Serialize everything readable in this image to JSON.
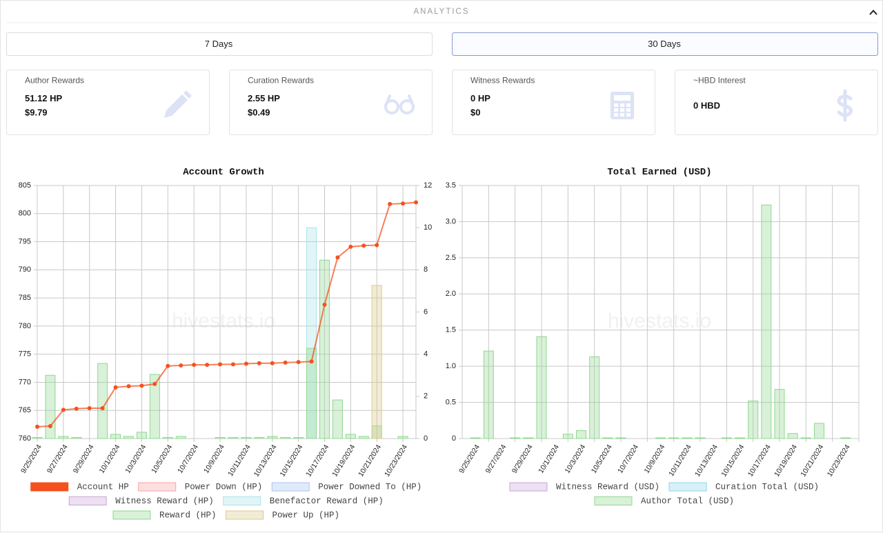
{
  "header": {
    "title": "ANALYTICS"
  },
  "range_buttons": [
    {
      "label": "7 Days",
      "selected": false
    },
    {
      "label": "30 Days",
      "selected": true
    }
  ],
  "cards": [
    {
      "title": "Author Rewards",
      "lines": [
        "51.12 HP",
        "$9.79"
      ],
      "icon": "pencil"
    },
    {
      "title": "Curation Rewards",
      "lines": [
        "2.55 HP",
        "$0.49"
      ],
      "icon": "glasses"
    },
    {
      "title": "Witness Rewards",
      "lines": [
        "0 HP",
        "$0"
      ],
      "icon": "calculator"
    },
    {
      "title": "~HBD Interest",
      "lines": [
        "0 HBD"
      ],
      "icon": "dollar"
    }
  ],
  "chart_data": [
    {
      "type": "bar",
      "title": "Account Growth",
      "watermark": "hivestats.io",
      "categories": [
        "9/25/2024",
        null,
        "9/27/2024",
        null,
        "9/29/2024",
        null,
        "10/1/2024",
        null,
        "10/3/2024",
        null,
        "10/5/2024",
        null,
        "10/7/2024",
        null,
        "10/9/2024",
        null,
        "10/11/2024",
        null,
        "10/13/2024",
        null,
        "10/15/2024",
        null,
        "10/17/2024",
        null,
        "10/19/2024",
        null,
        "10/21/2024",
        null,
        "10/23/2024",
        null
      ],
      "ylim": [
        760,
        805
      ],
      "yticks": [
        760,
        765,
        770,
        775,
        780,
        785,
        790,
        795,
        800,
        805
      ],
      "y2lim": [
        0,
        12
      ],
      "y2ticks": [
        0,
        2,
        4,
        6,
        8,
        10,
        12
      ],
      "grid": true,
      "series": [
        {
          "name": "Account HP",
          "type": "line",
          "color": "#f4511e",
          "values": [
            762.1,
            762.2,
            765.1,
            765.3,
            765.4,
            765.4,
            769.1,
            769.3,
            769.4,
            769.7,
            772.9,
            773.0,
            773.1,
            773.1,
            773.2,
            773.2,
            773.3,
            773.4,
            773.4,
            773.5,
            773.6,
            773.7,
            783.8,
            792.2,
            794.1,
            794.3,
            794.4,
            801.7,
            801.8,
            802.0
          ]
        },
        {
          "name": "Power Down (HP)",
          "axis": "y2",
          "color": "#f7a3a3",
          "values": [
            0,
            0,
            0,
            0,
            0,
            0,
            0,
            0,
            0,
            0,
            0,
            0,
            0,
            0,
            0,
            0,
            0,
            0,
            0,
            0,
            0,
            0,
            0,
            0,
            0,
            0,
            0,
            0,
            0,
            0
          ]
        },
        {
          "name": "Power Downed To (HP)",
          "axis": "y2",
          "color": "#a9c2f0",
          "values": [
            0,
            0,
            0,
            0,
            0,
            0,
            0,
            0,
            0,
            0,
            0,
            0,
            0,
            0,
            0,
            0,
            0,
            0,
            0,
            0,
            0,
            0,
            0,
            0,
            0,
            0,
            0,
            0,
            0,
            0
          ]
        },
        {
          "name": "Witness Reward (HP)",
          "axis": "y2",
          "color": "#c9a6d6",
          "values": [
            0,
            0,
            0,
            0,
            0,
            0,
            0,
            0,
            0,
            0,
            0,
            0,
            0,
            0,
            0,
            0,
            0,
            0,
            0,
            0,
            0,
            0,
            0,
            0,
            0,
            0,
            0,
            0,
            0,
            0
          ]
        },
        {
          "name": "Benefactor Reward (HP)",
          "axis": "y2",
          "color": "#a9e3e8",
          "values": [
            0,
            0,
            0,
            0,
            0,
            0,
            0,
            0,
            0,
            0,
            0,
            0,
            0,
            0,
            0,
            0,
            0,
            0,
            0,
            0,
            0,
            10.0,
            0,
            0,
            0,
            0,
            0,
            0,
            0,
            0
          ]
        },
        {
          "name": "Reward (HP)",
          "axis": "y2",
          "color": "#8fd88f",
          "values": [
            0.05,
            3.0,
            0.1,
            0.05,
            0,
            3.56,
            0.2,
            0.1,
            0.3,
            3.04,
            0.05,
            0.1,
            0,
            0,
            0.05,
            0.05,
            0.05,
            0.05,
            0.1,
            0.05,
            0.05,
            4.28,
            8.46,
            1.83,
            0.2,
            0.1,
            0.6,
            0,
            0.1,
            0
          ]
        },
        {
          "name": "Power Up (HP)",
          "axis": "y2",
          "color": "#d9c98a",
          "values": [
            0,
            0,
            0,
            0,
            0,
            0,
            0,
            0,
            0,
            0,
            0,
            0,
            0,
            0,
            0,
            0,
            0,
            0,
            0,
            0,
            0,
            0,
            0,
            0,
            0,
            0,
            7.26,
            0,
            0,
            0
          ]
        }
      ]
    },
    {
      "type": "bar",
      "title": "Total Earned (USD)",
      "watermark": "hivestats.io",
      "categories": [
        "9/25/2024",
        null,
        "9/27/2024",
        null,
        "9/29/2024",
        null,
        "10/1/2024",
        null,
        "10/3/2024",
        null,
        "10/5/2024",
        null,
        "10/7/2024",
        null,
        "10/9/2024",
        null,
        "10/11/2024",
        null,
        "10/13/2024",
        null,
        "10/15/2024",
        null,
        "10/17/2024",
        null,
        "10/19/2024",
        null,
        "10/21/2024",
        null,
        "10/23/2024",
        null
      ],
      "ylim": [
        0,
        3.5
      ],
      "yticks": [
        0,
        0.5,
        {
          "value": 1,
          "label": "1.0"
        },
        1.5,
        {
          "value": 2,
          "label": "2.0"
        },
        2.5,
        {
          "value": 3,
          "label": "3.0"
        },
        3.5
      ],
      "grid": true,
      "series": [
        {
          "name": "Witness Reward (USD)",
          "color": "#c9a6d6",
          "values": [
            0,
            0,
            0,
            0,
            0,
            0,
            0,
            0,
            0,
            0,
            0,
            0,
            0,
            0,
            0,
            0,
            0,
            0,
            0,
            0,
            0,
            0,
            0,
            0,
            0,
            0,
            0,
            0,
            0,
            0
          ]
        },
        {
          "name": "Curation Total (USD)",
          "color": "#8fd3ec",
          "values": [
            0,
            0,
            0,
            0,
            0,
            0,
            0,
            0,
            0,
            0,
            0,
            0,
            0,
            0,
            0,
            0,
            0,
            0,
            0,
            0,
            0,
            0,
            0,
            0,
            0,
            0,
            0,
            0,
            0,
            0
          ]
        },
        {
          "name": "Author Total (USD)",
          "color": "#8fd88f",
          "values": [
            0.01,
            1.21,
            0,
            0.01,
            0.01,
            1.41,
            0,
            0.06,
            0.11,
            1.13,
            0.01,
            0.01,
            0,
            0,
            0.01,
            0.01,
            0.01,
            0.01,
            0,
            0.01,
            0.01,
            0.52,
            3.23,
            0.68,
            0.07,
            0.01,
            0.21,
            0,
            0.01,
            0
          ]
        }
      ]
    }
  ]
}
